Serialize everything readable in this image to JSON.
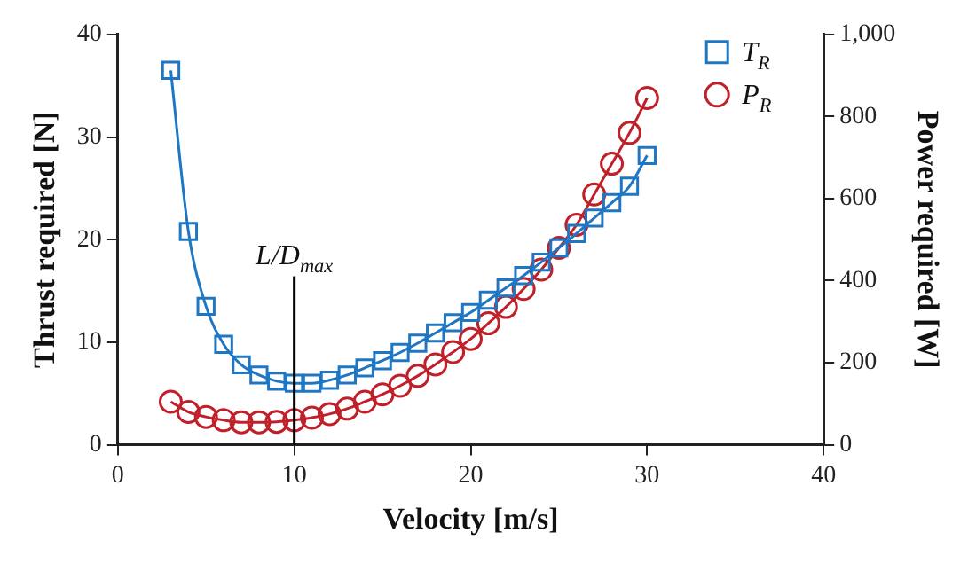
{
  "chart_data": {
    "type": "line",
    "xlabel": "Velocity [m/s]",
    "ylabel": "Thrust required [N]",
    "y2label": "Power required [W]",
    "x": [
      3,
      4,
      5,
      6,
      7,
      8,
      9,
      10,
      11,
      12,
      13,
      14,
      15,
      16,
      17,
      18,
      19,
      20,
      21,
      22,
      23,
      24,
      25,
      26,
      27,
      28,
      29,
      30
    ],
    "series": [
      {
        "name": "T$_{R}$",
        "color": "#1f77c4",
        "marker": "square",
        "values": [
          36.5,
          20.8,
          13.5,
          9.8,
          7.8,
          6.8,
          6.2,
          6.0,
          6.0,
          6.3,
          6.8,
          7.5,
          8.2,
          9.0,
          9.9,
          10.9,
          11.9,
          12.9,
          14.1,
          15.3,
          16.5,
          17.8,
          19.2,
          20.6,
          22.1,
          23.6,
          25.2,
          28.2
        ]
      },
      {
        "name": "P$_{R}$",
        "color": "#c0202a",
        "marker": "circle",
        "axis": "y2",
        "values": [
          105,
          80,
          68,
          60,
          55,
          55,
          56,
          60,
          66,
          75,
          88,
          105,
          123,
          144,
          168,
          196,
          226,
          258,
          296,
          336,
          380,
          427,
          480,
          536,
          610,
          685,
          760,
          845
        ]
      }
    ],
    "xlim": [
      0,
      40
    ],
    "xticks": [
      0,
      10,
      20,
      30,
      40
    ],
    "ylim": [
      0,
      40
    ],
    "yticks": [
      0,
      10,
      20,
      30,
      40
    ],
    "y2lim": [
      0,
      1000
    ],
    "y2ticks": [
      0,
      200,
      400,
      600,
      800,
      {
        "value": 1000,
        "label": "1,000"
      }
    ],
    "ref_lines": [
      {
        "axis": "x",
        "value": 10,
        "label": "L/D$_{max}$",
        "color": "#000000"
      }
    ],
    "legend": "top right",
    "grid": false
  }
}
